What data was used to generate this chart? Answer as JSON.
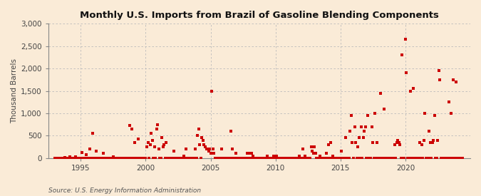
{
  "title": "Monthly U.S. Imports from Brazil of Gasoline Blending Components",
  "ylabel": "Thousand Barrels",
  "source": "Source: U.S. Energy Information Administration",
  "background_color": "#faebd7",
  "plot_background_color": "#faebd7",
  "marker_color": "#cc0000",
  "ylim": [
    0,
    3000
  ],
  "yticks": [
    0,
    500,
    1000,
    1500,
    2000,
    2500,
    3000
  ],
  "xlim_start": 1992.5,
  "xlim_end": 2025.0,
  "xticks": [
    1995,
    2000,
    2005,
    2010,
    2015,
    2020
  ],
  "data_points": [
    [
      1993.0,
      0
    ],
    [
      1993.083,
      0
    ],
    [
      1993.167,
      0
    ],
    [
      1993.25,
      0
    ],
    [
      1993.333,
      0
    ],
    [
      1993.417,
      0
    ],
    [
      1993.5,
      0
    ],
    [
      1993.583,
      0
    ],
    [
      1993.667,
      0
    ],
    [
      1993.75,
      10
    ],
    [
      1993.833,
      0
    ],
    [
      1993.917,
      0
    ],
    [
      1994.0,
      0
    ],
    [
      1994.083,
      0
    ],
    [
      1994.167,
      30
    ],
    [
      1994.25,
      0
    ],
    [
      1994.333,
      0
    ],
    [
      1994.417,
      0
    ],
    [
      1994.5,
      0
    ],
    [
      1994.583,
      20
    ],
    [
      1994.667,
      0
    ],
    [
      1994.75,
      0
    ],
    [
      1994.833,
      0
    ],
    [
      1994.917,
      0
    ],
    [
      1995.0,
      0
    ],
    [
      1995.083,
      120
    ],
    [
      1995.167,
      0
    ],
    [
      1995.25,
      0
    ],
    [
      1995.333,
      0
    ],
    [
      1995.417,
      80
    ],
    [
      1995.5,
      0
    ],
    [
      1995.583,
      0
    ],
    [
      1995.667,
      200
    ],
    [
      1995.75,
      0
    ],
    [
      1995.833,
      0
    ],
    [
      1995.917,
      550
    ],
    [
      1996.0,
      0
    ],
    [
      1996.083,
      0
    ],
    [
      1996.167,
      150
    ],
    [
      1996.25,
      0
    ],
    [
      1996.333,
      0
    ],
    [
      1996.417,
      0
    ],
    [
      1996.5,
      0
    ],
    [
      1996.583,
      0
    ],
    [
      1996.667,
      0
    ],
    [
      1996.75,
      100
    ],
    [
      1996.833,
      0
    ],
    [
      1996.917,
      0
    ],
    [
      1997.0,
      0
    ],
    [
      1997.083,
      0
    ],
    [
      1997.167,
      0
    ],
    [
      1997.25,
      0
    ],
    [
      1997.333,
      0
    ],
    [
      1997.417,
      0
    ],
    [
      1997.5,
      30
    ],
    [
      1997.583,
      0
    ],
    [
      1997.667,
      0
    ],
    [
      1997.75,
      0
    ],
    [
      1997.833,
      0
    ],
    [
      1997.917,
      0
    ],
    [
      1998.0,
      0
    ],
    [
      1998.083,
      0
    ],
    [
      1998.167,
      0
    ],
    [
      1998.25,
      0
    ],
    [
      1998.333,
      0
    ],
    [
      1998.417,
      0
    ],
    [
      1998.5,
      0
    ],
    [
      1998.583,
      0
    ],
    [
      1998.667,
      0
    ],
    [
      1998.75,
      730
    ],
    [
      1998.833,
      0
    ],
    [
      1998.917,
      650
    ],
    [
      1999.0,
      0
    ],
    [
      1999.083,
      0
    ],
    [
      1999.167,
      350
    ],
    [
      1999.25,
      0
    ],
    [
      1999.333,
      0
    ],
    [
      1999.417,
      430
    ],
    [
      1999.5,
      0
    ],
    [
      1999.583,
      0
    ],
    [
      1999.667,
      0
    ],
    [
      1999.75,
      0
    ],
    [
      1999.833,
      0
    ],
    [
      1999.917,
      0
    ],
    [
      2000.0,
      0
    ],
    [
      2000.083,
      250
    ],
    [
      2000.167,
      350
    ],
    [
      2000.25,
      0
    ],
    [
      2000.333,
      300
    ],
    [
      2000.417,
      550
    ],
    [
      2000.5,
      400
    ],
    [
      2000.583,
      0
    ],
    [
      2000.667,
      250
    ],
    [
      2000.75,
      0
    ],
    [
      2000.833,
      650
    ],
    [
      2000.917,
      750
    ],
    [
      2001.0,
      200
    ],
    [
      2001.083,
      0
    ],
    [
      2001.167,
      0
    ],
    [
      2001.25,
      450
    ],
    [
      2001.333,
      250
    ],
    [
      2001.417,
      300
    ],
    [
      2001.5,
      0
    ],
    [
      2001.583,
      350
    ],
    [
      2001.667,
      0
    ],
    [
      2001.75,
      0
    ],
    [
      2001.833,
      0
    ],
    [
      2001.917,
      0
    ],
    [
      2002.0,
      0
    ],
    [
      2002.083,
      0
    ],
    [
      2002.167,
      150
    ],
    [
      2002.25,
      0
    ],
    [
      2002.333,
      0
    ],
    [
      2002.417,
      0
    ],
    [
      2002.5,
      0
    ],
    [
      2002.583,
      0
    ],
    [
      2002.667,
      0
    ],
    [
      2002.75,
      0
    ],
    [
      2002.833,
      0
    ],
    [
      2002.917,
      50
    ],
    [
      2003.0,
      0
    ],
    [
      2003.083,
      200
    ],
    [
      2003.167,
      0
    ],
    [
      2003.25,
      0
    ],
    [
      2003.333,
      0
    ],
    [
      2003.417,
      0
    ],
    [
      2003.5,
      0
    ],
    [
      2003.583,
      0
    ],
    [
      2003.667,
      0
    ],
    [
      2003.75,
      0
    ],
    [
      2003.833,
      200
    ],
    [
      2003.917,
      0
    ],
    [
      2004.0,
      500
    ],
    [
      2004.083,
      650
    ],
    [
      2004.167,
      300
    ],
    [
      2004.25,
      0
    ],
    [
      2004.333,
      450
    ],
    [
      2004.417,
      400
    ],
    [
      2004.5,
      300
    ],
    [
      2004.583,
      250
    ],
    [
      2004.667,
      200
    ],
    [
      2004.75,
      200
    ],
    [
      2004.833,
      150
    ],
    [
      2004.917,
      200
    ],
    [
      2005.0,
      100
    ],
    [
      2005.083,
      1500
    ],
    [
      2005.167,
      200
    ],
    [
      2005.25,
      100
    ],
    [
      2005.333,
      0
    ],
    [
      2005.417,
      0
    ],
    [
      2005.5,
      0
    ],
    [
      2005.583,
      0
    ],
    [
      2005.667,
      0
    ],
    [
      2005.75,
      0
    ],
    [
      2005.833,
      200
    ],
    [
      2005.917,
      0
    ],
    [
      2006.0,
      0
    ],
    [
      2006.083,
      0
    ],
    [
      2006.167,
      0
    ],
    [
      2006.25,
      0
    ],
    [
      2006.333,
      0
    ],
    [
      2006.417,
      0
    ],
    [
      2006.5,
      0
    ],
    [
      2006.583,
      600
    ],
    [
      2006.667,
      200
    ],
    [
      2006.75,
      0
    ],
    [
      2006.833,
      0
    ],
    [
      2006.917,
      100
    ],
    [
      2007.0,
      0
    ],
    [
      2007.083,
      0
    ],
    [
      2007.167,
      0
    ],
    [
      2007.25,
      0
    ],
    [
      2007.333,
      0
    ],
    [
      2007.417,
      0
    ],
    [
      2007.5,
      0
    ],
    [
      2007.583,
      0
    ],
    [
      2007.667,
      0
    ],
    [
      2007.75,
      0
    ],
    [
      2007.833,
      100
    ],
    [
      2007.917,
      0
    ],
    [
      2008.0,
      100
    ],
    [
      2008.083,
      0
    ],
    [
      2008.167,
      100
    ],
    [
      2008.25,
      50
    ],
    [
      2008.333,
      0
    ],
    [
      2008.417,
      0
    ],
    [
      2008.5,
      0
    ],
    [
      2008.583,
      0
    ],
    [
      2008.667,
      0
    ],
    [
      2008.75,
      0
    ],
    [
      2008.833,
      0
    ],
    [
      2008.917,
      0
    ],
    [
      2009.0,
      0
    ],
    [
      2009.083,
      0
    ],
    [
      2009.167,
      0
    ],
    [
      2009.25,
      0
    ],
    [
      2009.333,
      50
    ],
    [
      2009.417,
      0
    ],
    [
      2009.5,
      0
    ],
    [
      2009.583,
      0
    ],
    [
      2009.667,
      0
    ],
    [
      2009.75,
      0
    ],
    [
      2009.833,
      50
    ],
    [
      2009.917,
      0
    ],
    [
      2010.0,
      0
    ],
    [
      2010.083,
      50
    ],
    [
      2010.167,
      0
    ],
    [
      2010.25,
      0
    ],
    [
      2010.333,
      0
    ],
    [
      2010.417,
      0
    ],
    [
      2010.5,
      0
    ],
    [
      2010.583,
      0
    ],
    [
      2010.667,
      0
    ],
    [
      2010.75,
      0
    ],
    [
      2010.833,
      0
    ],
    [
      2010.917,
      0
    ],
    [
      2011.0,
      0
    ],
    [
      2011.083,
      0
    ],
    [
      2011.167,
      0
    ],
    [
      2011.25,
      0
    ],
    [
      2011.333,
      0
    ],
    [
      2011.417,
      0
    ],
    [
      2011.5,
      0
    ],
    [
      2011.583,
      0
    ],
    [
      2011.667,
      0
    ],
    [
      2011.75,
      0
    ],
    [
      2011.833,
      50
    ],
    [
      2011.917,
      0
    ],
    [
      2012.0,
      0
    ],
    [
      2012.083,
      200
    ],
    [
      2012.167,
      0
    ],
    [
      2012.25,
      50
    ],
    [
      2012.333,
      0
    ],
    [
      2012.417,
      0
    ],
    [
      2012.5,
      0
    ],
    [
      2012.583,
      0
    ],
    [
      2012.667,
      0
    ],
    [
      2012.75,
      250
    ],
    [
      2012.833,
      150
    ],
    [
      2012.917,
      100
    ],
    [
      2013.0,
      250
    ],
    [
      2013.083,
      100
    ],
    [
      2013.167,
      0
    ],
    [
      2013.25,
      0
    ],
    [
      2013.333,
      0
    ],
    [
      2013.417,
      50
    ],
    [
      2013.5,
      0
    ],
    [
      2013.583,
      0
    ],
    [
      2013.667,
      0
    ],
    [
      2013.75,
      0
    ],
    [
      2013.833,
      0
    ],
    [
      2013.917,
      100
    ],
    [
      2014.0,
      0
    ],
    [
      2014.083,
      300
    ],
    [
      2014.167,
      0
    ],
    [
      2014.25,
      350
    ],
    [
      2014.333,
      0
    ],
    [
      2014.417,
      50
    ],
    [
      2014.5,
      0
    ],
    [
      2014.583,
      0
    ],
    [
      2014.667,
      0
    ],
    [
      2014.75,
      0
    ],
    [
      2014.833,
      0
    ],
    [
      2014.917,
      0
    ],
    [
      2015.0,
      0
    ],
    [
      2015.083,
      150
    ],
    [
      2015.167,
      0
    ],
    [
      2015.25,
      0
    ],
    [
      2015.333,
      0
    ],
    [
      2015.417,
      450
    ],
    [
      2015.5,
      0
    ],
    [
      2015.583,
      0
    ],
    [
      2015.667,
      0
    ],
    [
      2015.75,
      600
    ],
    [
      2015.833,
      950
    ],
    [
      2015.917,
      350
    ],
    [
      2016.0,
      0
    ],
    [
      2016.083,
      700
    ],
    [
      2016.167,
      350
    ],
    [
      2016.25,
      0
    ],
    [
      2016.333,
      250
    ],
    [
      2016.417,
      450
    ],
    [
      2016.5,
      0
    ],
    [
      2016.583,
      700
    ],
    [
      2016.667,
      0
    ],
    [
      2016.75,
      450
    ],
    [
      2016.833,
      600
    ],
    [
      2016.917,
      700
    ],
    [
      2017.0,
      0
    ],
    [
      2017.083,
      950
    ],
    [
      2017.167,
      0
    ],
    [
      2017.25,
      0
    ],
    [
      2017.333,
      0
    ],
    [
      2017.417,
      700
    ],
    [
      2017.5,
      350
    ],
    [
      2017.583,
      0
    ],
    [
      2017.667,
      1000
    ],
    [
      2017.75,
      0
    ],
    [
      2017.833,
      350
    ],
    [
      2017.917,
      0
    ],
    [
      2018.0,
      0
    ],
    [
      2018.083,
      1450
    ],
    [
      2018.167,
      0
    ],
    [
      2018.25,
      0
    ],
    [
      2018.333,
      1100
    ],
    [
      2018.417,
      0
    ],
    [
      2018.5,
      0
    ],
    [
      2018.583,
      0
    ],
    [
      2018.667,
      0
    ],
    [
      2018.75,
      0
    ],
    [
      2018.833,
      0
    ],
    [
      2018.917,
      0
    ],
    [
      2019.0,
      0
    ],
    [
      2019.083,
      0
    ],
    [
      2019.167,
      300
    ],
    [
      2019.25,
      0
    ],
    [
      2019.333,
      350
    ],
    [
      2019.417,
      400
    ],
    [
      2019.5,
      350
    ],
    [
      2019.583,
      300
    ],
    [
      2019.667,
      0
    ],
    [
      2019.75,
      2300
    ],
    [
      2019.833,
      0
    ],
    [
      2019.917,
      0
    ],
    [
      2020.0,
      2650
    ],
    [
      2020.083,
      1900
    ],
    [
      2020.167,
      0
    ],
    [
      2020.25,
      0
    ],
    [
      2020.333,
      0
    ],
    [
      2020.417,
      1500
    ],
    [
      2020.5,
      0
    ],
    [
      2020.583,
      1550
    ],
    [
      2020.667,
      0
    ],
    [
      2020.75,
      0
    ],
    [
      2020.833,
      0
    ],
    [
      2020.917,
      0
    ],
    [
      2021.0,
      0
    ],
    [
      2021.083,
      350
    ],
    [
      2021.167,
      0
    ],
    [
      2021.25,
      300
    ],
    [
      2021.333,
      0
    ],
    [
      2021.417,
      400
    ],
    [
      2021.5,
      1000
    ],
    [
      2021.583,
      0
    ],
    [
      2021.667,
      0
    ],
    [
      2021.75,
      0
    ],
    [
      2021.833,
      600
    ],
    [
      2021.917,
      350
    ],
    [
      2022.0,
      0
    ],
    [
      2022.083,
      350
    ],
    [
      2022.167,
      400
    ],
    [
      2022.25,
      950
    ],
    [
      2022.333,
      0
    ],
    [
      2022.417,
      0
    ],
    [
      2022.5,
      400
    ],
    [
      2022.583,
      1950
    ],
    [
      2022.667,
      1750
    ],
    [
      2022.75,
      0
    ],
    [
      2022.833,
      0
    ],
    [
      2022.917,
      0
    ],
    [
      2023.0,
      0
    ],
    [
      2023.083,
      0
    ],
    [
      2023.167,
      0
    ],
    [
      2023.25,
      0
    ],
    [
      2023.333,
      1250
    ],
    [
      2023.417,
      0
    ],
    [
      2023.5,
      1000
    ],
    [
      2023.583,
      0
    ],
    [
      2023.667,
      1750
    ],
    [
      2023.75,
      0
    ],
    [
      2023.833,
      0
    ],
    [
      2023.917,
      1700
    ],
    [
      2024.0,
      0
    ],
    [
      2024.083,
      0
    ],
    [
      2024.167,
      0
    ],
    [
      2024.25,
      0
    ],
    [
      2024.333,
      0
    ],
    [
      2024.417,
      0
    ]
  ]
}
